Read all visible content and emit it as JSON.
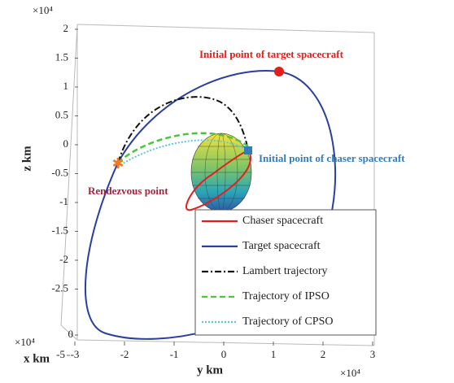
{
  "chart_data": {
    "type": "orbit3d",
    "zlabel": "z km",
    "ylabel": "y km",
    "xlabel": "x km",
    "zmultiplier": "×10⁴",
    "ymultiplier": "×10⁴",
    "xmultiplier": "×10⁴",
    "zlim": [
      -3,
      2
    ],
    "zticks": [
      -2.5,
      -2,
      -1.5,
      -1,
      -0.5,
      0,
      0.5,
      1,
      1.5,
      2
    ],
    "ylim": [
      -3,
      3
    ],
    "yticks": [
      -3,
      -2,
      -1,
      0,
      1,
      2,
      3
    ],
    "xticks": [
      -5,
      0
    ],
    "annotations": {
      "target_start": "Initial point of target spacecraft",
      "chaser_start": "Initial point of chaser spacecraft",
      "rendezvous": "Rendezvous point"
    },
    "annotation_colors": {
      "target_start": "#e0201b",
      "chaser_start": "#2f7dbd",
      "rendezvous": "#a8243b"
    },
    "series": [
      {
        "name": "Chaser spacecraft",
        "color": "#e0201b",
        "style": "solid"
      },
      {
        "name": "Target spacecraft",
        "color": "#2a3f9e",
        "style": "solid"
      },
      {
        "name": "Lambert trajectory",
        "color": "#111111",
        "style": "dashdot"
      },
      {
        "name": "Trajectory of  IPSO",
        "color": "#4cc43c",
        "style": "dashed"
      },
      {
        "name": "Trajectory of CPSO",
        "color": "#5cc8e0",
        "style": "dotted"
      }
    ]
  }
}
